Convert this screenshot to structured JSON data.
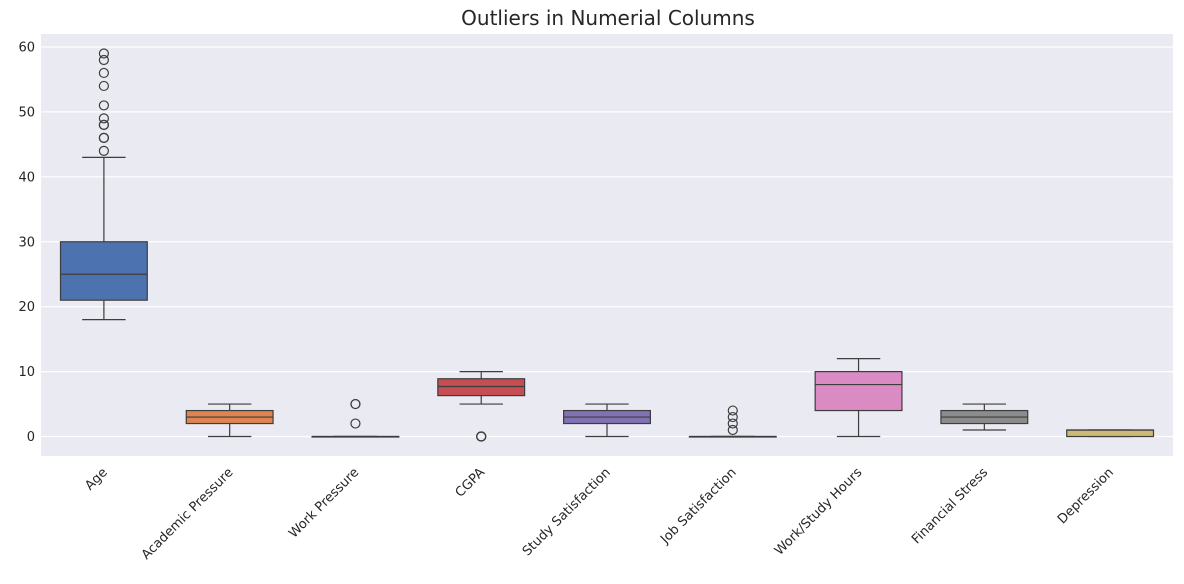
{
  "chart_data": {
    "type": "box",
    "title": "Outliers in Numerial Columns",
    "xlabel": "",
    "ylabel": "",
    "ylim": [
      -3,
      62
    ],
    "yticks": [
      0,
      10,
      20,
      30,
      40,
      50,
      60
    ],
    "grid": true,
    "legend": "none",
    "categories": [
      "Age",
      "Academic Pressure",
      "Work Pressure",
      "CGPA",
      "Study Satisfaction",
      "Job Satisfaction",
      "Work/Study Hours",
      "Financial Stress",
      "Depression"
    ],
    "series": [
      {
        "category": "Age",
        "color": "#4c72b0",
        "whisker_low": 18,
        "q1": 21,
        "median": 25,
        "q3": 30,
        "whisker_high": 43,
        "outliers": [
          44,
          46,
          46,
          48,
          48,
          49,
          51,
          54,
          56,
          58,
          59
        ]
      },
      {
        "category": "Academic Pressure",
        "color": "#dd8452",
        "whisker_low": 0,
        "q1": 2,
        "median": 3,
        "q3": 4,
        "whisker_high": 5,
        "outliers": []
      },
      {
        "category": "Work Pressure",
        "color": "#55a868",
        "whisker_low": 0,
        "q1": 0,
        "median": 0,
        "q3": 0,
        "whisker_high": 0,
        "outliers": [
          2,
          5,
          5
        ]
      },
      {
        "category": "CGPA",
        "color": "#c44e52",
        "whisker_low": 5,
        "q1": 6.3,
        "median": 7.7,
        "q3": 8.9,
        "whisker_high": 10,
        "outliers": [
          0,
          0,
          0
        ]
      },
      {
        "category": "Study Satisfaction",
        "color": "#8172b3",
        "whisker_low": 0,
        "q1": 2,
        "median": 3,
        "q3": 4,
        "whisker_high": 5,
        "outliers": []
      },
      {
        "category": "Job Satisfaction",
        "color": "#937860",
        "whisker_low": 0,
        "q1": 0,
        "median": 0,
        "q3": 0,
        "whisker_high": 0,
        "outliers": [
          1,
          2,
          3,
          4
        ]
      },
      {
        "category": "Work/Study Hours",
        "color": "#da8bc3",
        "whisker_low": 0,
        "q1": 4,
        "median": 8,
        "q3": 10,
        "whisker_high": 12,
        "outliers": []
      },
      {
        "category": "Financial Stress",
        "color": "#8c8c8c",
        "whisker_low": 1,
        "q1": 2,
        "median": 3,
        "q3": 4,
        "whisker_high": 5,
        "outliers": []
      },
      {
        "category": "Depression",
        "color": "#ccb974",
        "whisker_low": 0,
        "q1": 0,
        "median": 1,
        "q3": 1,
        "whisker_high": 1,
        "outliers": []
      }
    ]
  }
}
